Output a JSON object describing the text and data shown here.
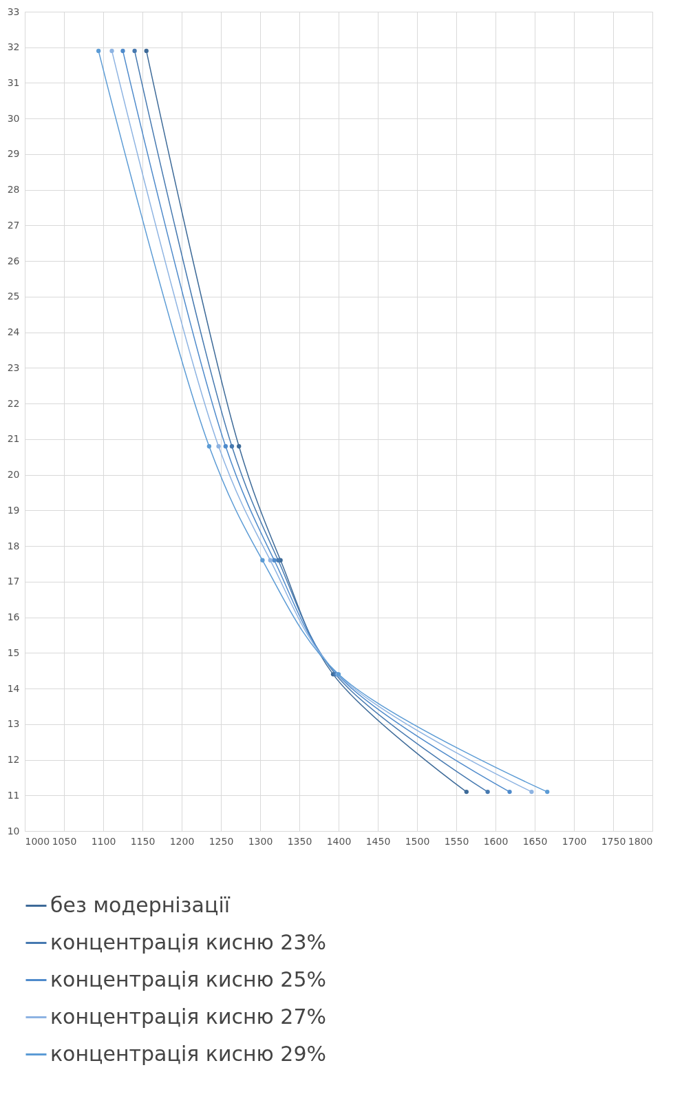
{
  "chart_data": {
    "type": "line",
    "xlim": [
      1000,
      1800
    ],
    "xticks": [
      1000,
      1050,
      1100,
      1150,
      1200,
      1250,
      1300,
      1350,
      1400,
      1450,
      1500,
      1550,
      1600,
      1650,
      1700,
      1750,
      1800
    ],
    "ylim": [
      10,
      33
    ],
    "yticks": [
      10,
      11,
      12,
      13,
      14,
      15,
      16,
      17,
      18,
      19,
      20,
      21,
      22,
      23,
      24,
      25,
      26,
      27,
      28,
      29,
      30,
      31,
      32,
      33
    ],
    "grid": true,
    "legend": "bottom",
    "marker": "circle",
    "line_style": "solid",
    "series": [
      {
        "name": "без модернізації",
        "color": "#3d6a98",
        "x": [
          1155,
          1273,
          1326,
          1393,
          1563
        ],
        "values": [
          31.9,
          20.8,
          17.6,
          14.4,
          11.1
        ]
      },
      {
        "name": "концентрація кисню 23%",
        "color": "#4679b0",
        "x": [
          1140,
          1264,
          1323,
          1396,
          1590
        ],
        "values": [
          31.9,
          20.8,
          17.6,
          14.4,
          11.1
        ]
      },
      {
        "name": "концентрація кисню 25%",
        "color": "#4e8acb",
        "x": [
          1125,
          1256,
          1318,
          1398,
          1618
        ],
        "values": [
          31.9,
          20.8,
          17.6,
          14.4,
          11.1
        ]
      },
      {
        "name": "концентрація кисню 27%",
        "color": "#8db3e2",
        "x": [
          1111,
          1247,
          1313,
          1399,
          1646
        ],
        "values": [
          31.9,
          20.8,
          17.6,
          14.4,
          11.1
        ]
      },
      {
        "name": "концентрація кисню 29%",
        "color": "#5b9bd5",
        "x": [
          1094,
          1235,
          1303,
          1400,
          1666
        ],
        "values": [
          31.9,
          20.8,
          17.6,
          14.4,
          11.1
        ]
      }
    ]
  }
}
